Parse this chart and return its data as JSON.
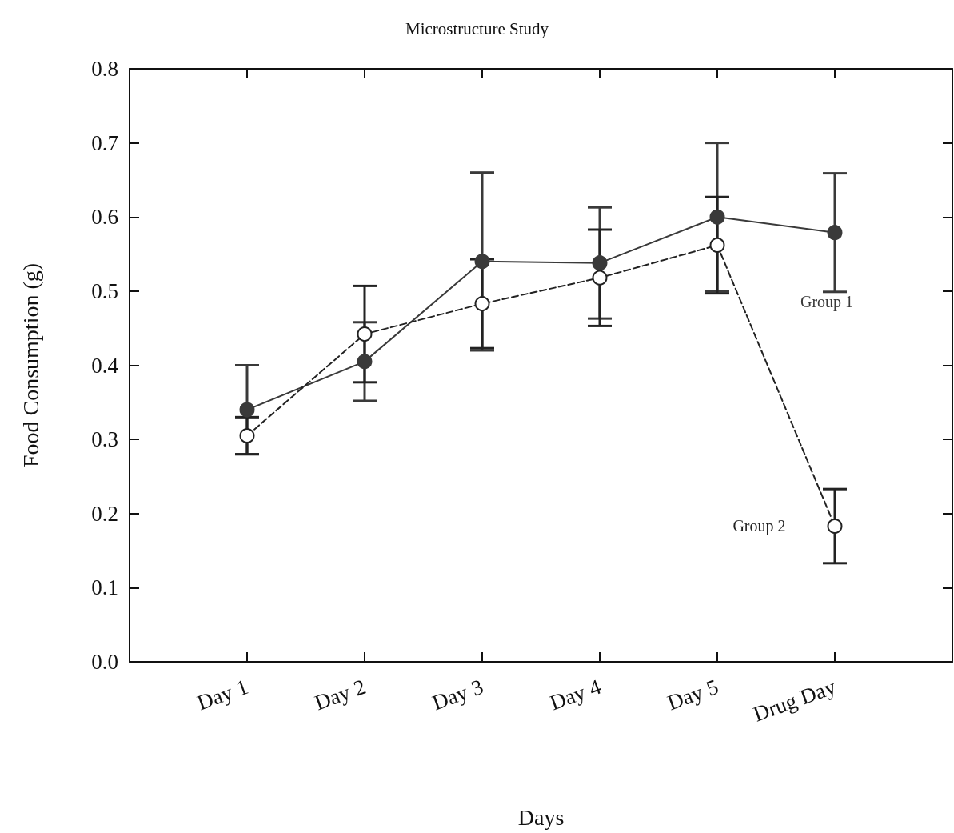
{
  "chart_data": {
    "type": "line",
    "title": "Microstructure Study",
    "xlabel": "Days",
    "ylabel": "Food Consumption (g)",
    "categories": [
      "Day 1",
      "Day 2",
      "Day 3",
      "Day 4",
      "Day 5",
      "Drug Day"
    ],
    "ylim": [
      0,
      0.8
    ],
    "yticks": [
      {
        "value": 0,
        "label": "0.0"
      },
      0.1,
      0.2,
      0.3,
      0.4,
      0.5,
      0.6,
      0.7,
      0.8
    ],
    "grid": false,
    "legend": false,
    "series": [
      {
        "name": "Group 1",
        "color": "#3a3a3a",
        "marker": "circle",
        "line_style": "solid",
        "values": [
          0.34,
          0.405,
          0.54,
          0.538,
          0.6,
          0.579
        ],
        "errors": [
          0.06,
          0.053,
          0.12,
          0.075,
          0.1,
          0.08
        ]
      },
      {
        "name": "Group 2",
        "color": "#222222",
        "marker": "circle",
        "line_style": "dashed",
        "values": [
          0.305,
          0.442,
          0.483,
          0.518,
          0.562,
          0.183
        ],
        "errors": [
          0.025,
          0.065,
          0.06,
          0.065,
          0.065,
          0.05
        ]
      }
    ]
  }
}
